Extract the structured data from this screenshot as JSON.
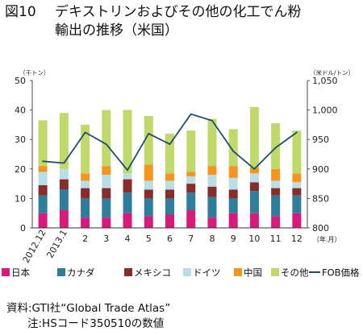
{
  "title": {
    "figure_no": "図10",
    "line1": "デキストリンおよびその他の化工でん粉",
    "line2": "輸出の推移（米国）"
  },
  "chart_data": {
    "type": "bar",
    "stacked": true,
    "categories": [
      "2012.12",
      "2013.1",
      "2",
      "3",
      "4",
      "5",
      "6",
      "7",
      "8",
      "9",
      "10",
      "11",
      "12"
    ],
    "xlabel": "（年.月）",
    "ylabel_left": "（千トン）",
    "ylabel_right": "（米ドル/トン）",
    "ylim_left": [
      0,
      50
    ],
    "yticks_left": [
      0,
      10,
      20,
      30,
      40,
      50
    ],
    "ylim_right": [
      800,
      1050
    ],
    "yticks_right": [
      "800",
      "850",
      "900",
      "950",
      "1,000",
      "1,050"
    ],
    "grid": false,
    "legend_position": "bottom",
    "series": [
      {
        "name": "日本",
        "color": "#d81b7a",
        "values": [
          5,
          6,
          3.5,
          3.5,
          5,
          4,
          4.5,
          6,
          3.5,
          5,
          5,
          4,
          5
        ]
      },
      {
        "name": "カナダ",
        "color": "#2e7d9a",
        "values": [
          6,
          7,
          6.5,
          6.5,
          7,
          6,
          5.5,
          6,
          7,
          5,
          7.5,
          7,
          6
        ]
      },
      {
        "name": "メキシコ",
        "color": "#8b2c2c",
        "values": [
          3.5,
          3.5,
          3.5,
          3.5,
          4.5,
          3,
          3,
          3,
          3.5,
          3,
          3,
          2.5,
          2.5
        ]
      },
      {
        "name": "ドイツ",
        "color": "#b8dfe6",
        "values": [
          4.5,
          3.5,
          2.5,
          4.5,
          2,
          3,
          3,
          2.5,
          4,
          4,
          3,
          2.5,
          2
        ]
      },
      {
        "name": "中国",
        "color": "#f7941d",
        "values": [
          2,
          0,
          2.5,
          3,
          0,
          5.5,
          2.5,
          1.5,
          3,
          4,
          2,
          4,
          3
        ]
      },
      {
        "name": "その他",
        "color": "#c1d96b",
        "values": [
          15.5,
          19,
          16.5,
          19,
          21.5,
          16.5,
          13.5,
          14,
          16,
          12.5,
          20.5,
          15.5,
          14.5
        ]
      }
    ],
    "line_series": {
      "name": "FOB価格",
      "color": "#1f4e6b",
      "axis": "right",
      "values": [
        913,
        910,
        962,
        942,
        898,
        960,
        942,
        993,
        982,
        930,
        900,
        936,
        962
      ]
    }
  },
  "notes": {
    "source": "資料:GTI社“Global Trade Atlas”",
    "note": "注:HSコード350510の数値"
  }
}
